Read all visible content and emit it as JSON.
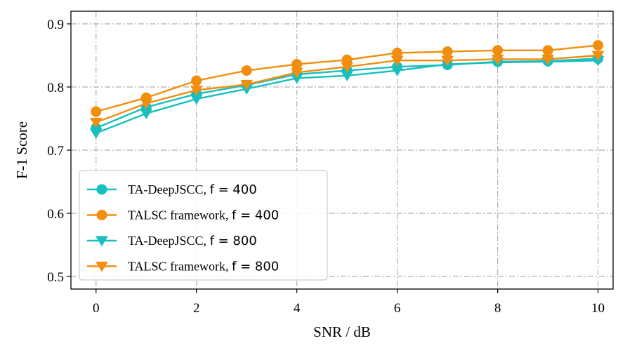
{
  "chart_data": {
    "type": "line",
    "title": "",
    "xlabel": "SNR / dB",
    "ylabel": "F-1 Score",
    "xlim": [
      -0.5,
      10.3
    ],
    "ylim": [
      0.48,
      0.92
    ],
    "xticks": [
      0,
      2,
      4,
      6,
      8,
      10
    ],
    "xtick_labels": [
      "0",
      "2",
      "4",
      "6",
      "8",
      "10"
    ],
    "yticks": [
      0.5,
      0.6,
      0.7,
      0.8,
      0.9
    ],
    "ytick_labels": [
      "0.5",
      "0.6",
      "0.7",
      "0.8",
      "0.9"
    ],
    "grid": true,
    "legend_position": "lower-left",
    "x": [
      0,
      1,
      2,
      3,
      4,
      5,
      6,
      7,
      8,
      9,
      10
    ],
    "series": [
      {
        "name": "TA-DeepJSCC, f = 400",
        "legend_prefix": "TA-DeepJSCC, ",
        "legend_math": "f = 400",
        "color": "#17bfbf",
        "marker": "circle",
        "values": [
          0.735,
          0.768,
          0.789,
          0.803,
          0.82,
          0.826,
          0.832,
          0.835,
          0.84,
          0.841,
          0.845
        ]
      },
      {
        "name": "TALSC framework, f = 400",
        "legend_prefix": "TALSC framework, ",
        "legend_math": "f = 400",
        "color": "#f28e0d",
        "marker": "circle",
        "values": [
          0.761,
          0.783,
          0.81,
          0.826,
          0.836,
          0.843,
          0.854,
          0.856,
          0.858,
          0.858,
          0.866
        ]
      },
      {
        "name": "TA-DeepJSCC, f = 800",
        "legend_prefix": "TA-DeepJSCC, ",
        "legend_math": "f = 800",
        "color": "#17bfbf",
        "marker": "triangle-down",
        "values": [
          0.727,
          0.758,
          0.781,
          0.797,
          0.814,
          0.818,
          0.826,
          0.836,
          0.839,
          0.84,
          0.842
        ]
      },
      {
        "name": "TALSC framework, f = 800",
        "legend_prefix": "TALSC framework, ",
        "legend_math": "f = 800",
        "color": "#f28e0d",
        "marker": "triangle-down",
        "values": [
          0.744,
          0.774,
          0.795,
          0.804,
          0.823,
          0.832,
          0.842,
          0.842,
          0.844,
          0.844,
          0.85
        ]
      }
    ]
  }
}
